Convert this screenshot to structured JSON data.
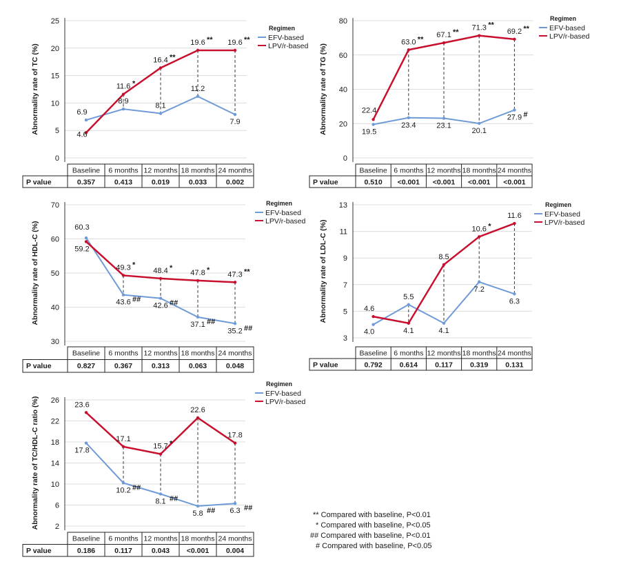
{
  "legend_title": "Regimen",
  "colors": {
    "efv": "#6e9ad8",
    "lpv": "#c8102e",
    "grid": "#dcdcdc",
    "axis": "#333333"
  },
  "p_value_label": "P value",
  "chart_data": [
    {
      "type": "line",
      "ylabel": "Abnormality rate of TC (%)",
      "categories": [
        "Baseline",
        "6 months",
        "12 months",
        "18 months",
        "24 months"
      ],
      "ylim": [
        0,
        25
      ],
      "yticks": [
        "0",
        "5",
        "10",
        "15",
        "20",
        "25"
      ],
      "legend": [
        "EFV-based",
        "LPV/r-based"
      ],
      "series": [
        {
          "name": "EFV-based",
          "values": [
            6.9,
            8.9,
            8.1,
            11.2,
            7.9
          ],
          "labels": [
            "6.9",
            "8.9",
            "8.1",
            "11.2",
            "7.9"
          ],
          "marks": [
            "",
            "",
            "",
            "",
            ""
          ]
        },
        {
          "name": "LPV/r-based",
          "values": [
            4.6,
            11.6,
            16.4,
            19.6,
            19.6
          ],
          "labels": [
            "4.6",
            "11.6",
            "16.4",
            "19.6",
            "19.6"
          ],
          "marks": [
            "",
            "*",
            "**",
            "**",
            "**"
          ]
        }
      ],
      "p_values": [
        "0.357",
        "0.413",
        "0.019",
        "0.033",
        "0.002"
      ]
    },
    {
      "type": "line",
      "ylabel": "Abnormality rate of TG (%)",
      "categories": [
        "Baseline",
        "6 months",
        "12 months",
        "18 months",
        "24 months"
      ],
      "ylim": [
        0,
        80
      ],
      "yticks": [
        "0",
        "20",
        "40",
        "60",
        "80"
      ],
      "legend": [
        "EFV-based",
        "LPV/r-based"
      ],
      "series": [
        {
          "name": "EFV-based",
          "values": [
            19.5,
            23.4,
            23.1,
            20.1,
            27.9
          ],
          "labels": [
            "19.5",
            "23.4",
            "23.1",
            "20.1",
            "27.9"
          ],
          "marks": [
            "",
            "",
            "",
            "",
            "#"
          ]
        },
        {
          "name": "LPV/r-based",
          "values": [
            22.4,
            63.0,
            67.1,
            71.3,
            69.2
          ],
          "labels": [
            "22.4",
            "63.0",
            "67.1",
            "71.3",
            "69.2"
          ],
          "marks": [
            "",
            "**",
            "**",
            "**",
            "**"
          ]
        }
      ],
      "p_values": [
        "0.510",
        "<0.001",
        "<0.001",
        "<0.001",
        "<0.001"
      ]
    },
    {
      "type": "line",
      "ylabel": "Abnormality rate of HDL-C (%)",
      "categories": [
        "Baseline",
        "6 months",
        "12 months",
        "18 months",
        "24 months"
      ],
      "ylim": [
        30,
        70
      ],
      "yticks": [
        "30",
        "40",
        "50",
        "60",
        "70"
      ],
      "legend": [
        "EFV-based",
        "LPV/r-based"
      ],
      "series": [
        {
          "name": "EFV-based",
          "values": [
            60.3,
            43.6,
            42.6,
            37.1,
            35.2
          ],
          "labels": [
            "60.3",
            "43.6",
            "42.6",
            "37.1",
            "35.2"
          ],
          "marks": [
            "",
            "##",
            "##",
            "##",
            "##"
          ]
        },
        {
          "name": "LPV/r-based",
          "values": [
            59.2,
            49.3,
            48.4,
            47.8,
            47.3
          ],
          "labels": [
            "59.2",
            "49.3",
            "48.4",
            "47.8",
            "47.3"
          ],
          "marks": [
            "",
            "*",
            "*",
            "*",
            "**"
          ]
        }
      ],
      "p_values": [
        "0.827",
        "0.367",
        "0.313",
        "0.063",
        "0.048"
      ]
    },
    {
      "type": "line",
      "ylabel": "Abnormality rate of LDL-C (%)",
      "categories": [
        "Baseline",
        "6 months",
        "12 months",
        "18 months",
        "24 months"
      ],
      "ylim": [
        3,
        13
      ],
      "yticks": [
        "3",
        "5",
        "7",
        "9",
        "11",
        "13"
      ],
      "legend": [
        "EFV-based",
        "LPV/r-based"
      ],
      "series": [
        {
          "name": "EFV-based",
          "values": [
            4.0,
            5.5,
            4.1,
            7.2,
            6.3
          ],
          "labels": [
            "4.0",
            "5.5",
            "4.1",
            "7.2",
            "6.3"
          ],
          "marks": [
            "",
            "",
            "",
            "",
            ""
          ]
        },
        {
          "name": "LPV/r-based",
          "values": [
            4.6,
            4.1,
            8.5,
            10.6,
            11.6
          ],
          "labels": [
            "4.6",
            "4.1",
            "8.5",
            "10.6",
            "11.6"
          ],
          "marks": [
            "",
            "",
            "",
            "*",
            ""
          ]
        }
      ],
      "p_values": [
        "0.792",
        "0.614",
        "0.117",
        "0.319",
        "0.131"
      ]
    },
    {
      "type": "line",
      "ylabel": "Abnormality rate of TC/HDL-C ratio (%)",
      "categories": [
        "Baseline",
        "6 months",
        "12 months",
        "18 months",
        "24 months"
      ],
      "ylim": [
        2,
        26
      ],
      "yticks": [
        "2",
        "6",
        "10",
        "14",
        "18",
        "22",
        "26"
      ],
      "legend": [
        "EFV-based",
        "LPV/r-based"
      ],
      "series": [
        {
          "name": "EFV-based",
          "values": [
            17.8,
            10.2,
            8.1,
            5.8,
            6.3
          ],
          "labels": [
            "17.8",
            "10.2",
            "8.1",
            "5.8",
            "6.3"
          ],
          "marks": [
            "",
            "##",
            "##",
            "##",
            "##"
          ]
        },
        {
          "name": "LPV/r-based",
          "values": [
            23.6,
            17.1,
            15.7,
            22.6,
            17.8
          ],
          "labels": [
            "23.6",
            "17.1",
            "15.7",
            "22.6",
            "17.8"
          ],
          "marks": [
            "",
            "",
            "*",
            "",
            ""
          ]
        }
      ],
      "p_values": [
        "0.186",
        "0.117",
        "0.043",
        "<0.001",
        "0.004"
      ]
    }
  ],
  "notes": [
    "** Compared with baseline, P<0.01",
    "* Compared with baseline, P<0.05",
    "## Compared with baseline, P<0.01",
    "# Compared with baseline, P<0.05"
  ]
}
